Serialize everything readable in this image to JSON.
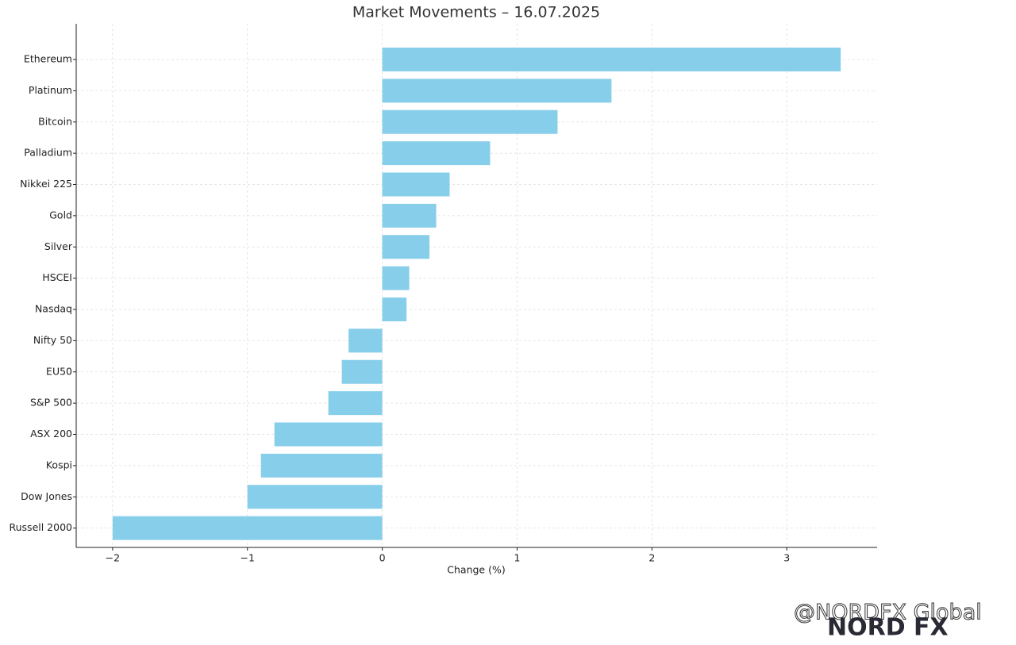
{
  "chart_data": {
    "type": "barh",
    "title": "Market Movements – 16.07.2025",
    "xlabel": "Change (%)",
    "categories": [
      "Ethereum",
      "Platinum",
      "Bitcoin",
      "Palladium",
      "Nikkei 225",
      "Gold",
      "Silver",
      "HSCEI",
      "Nasdaq",
      "Nifty 50",
      "EU50",
      "S&P 500",
      "ASX 200",
      "Kospi",
      "Dow Jones",
      "Russell 2000"
    ],
    "values": [
      3.4,
      1.7,
      1.3,
      0.8,
      0.5,
      0.4,
      0.35,
      0.2,
      0.18,
      -0.25,
      -0.3,
      -0.4,
      -0.8,
      -0.9,
      -1.0,
      -2.0
    ],
    "color": "#87ceeb",
    "xlim": [
      -2.27,
      3.67
    ],
    "xticks": [
      {
        "value": -2,
        "label": "−2"
      },
      {
        "value": -1,
        "label": "−1"
      },
      0,
      1,
      2,
      3
    ],
    "grid": true
  },
  "watermark": {
    "handle": "@NORDFX Global",
    "logo": "NORD FX"
  }
}
